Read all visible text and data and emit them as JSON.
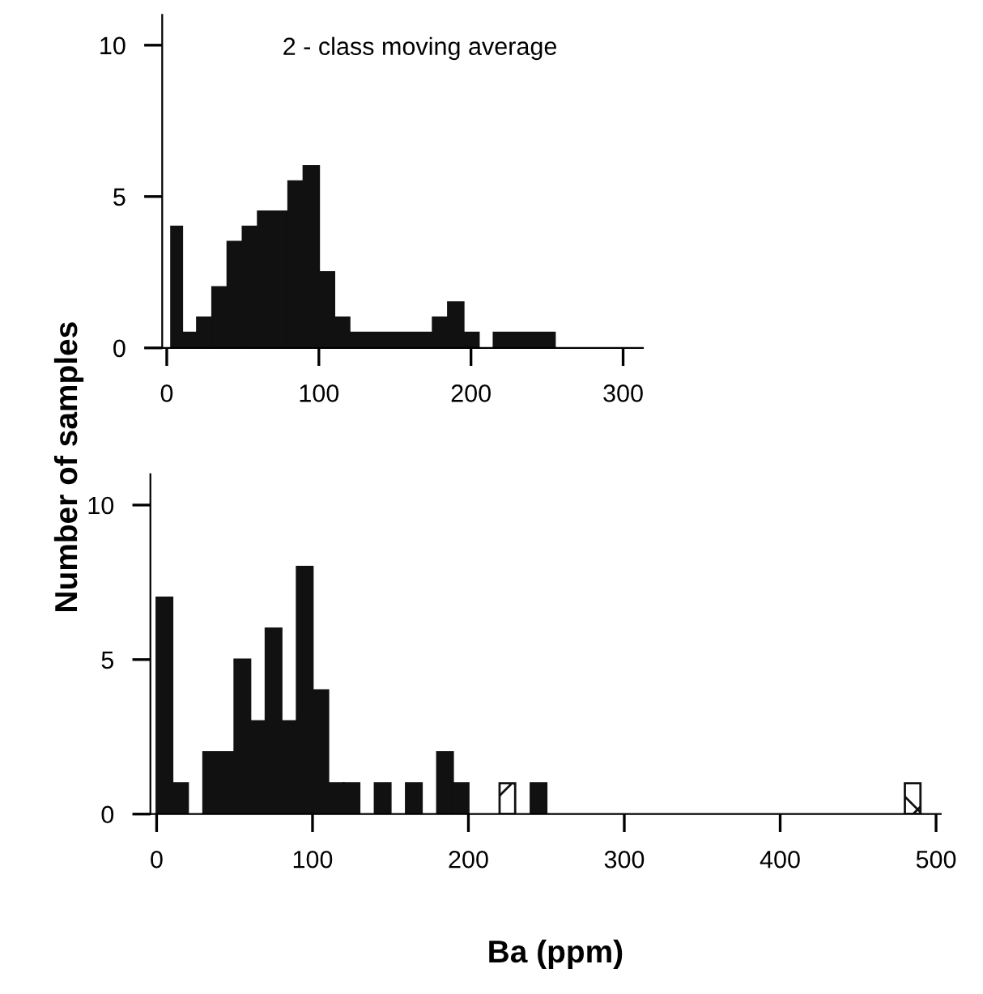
{
  "chart_data": [
    {
      "type": "histogram",
      "annotations": [
        "2 - class moving average"
      ],
      "ylabel": "Number of samples",
      "bins": [
        3,
        10,
        20,
        30,
        40,
        50,
        60,
        80,
        90,
        100,
        110,
        120,
        175,
        185,
        195,
        205,
        215,
        255
      ],
      "values": [
        4,
        0.5,
        1,
        2,
        3.5,
        4,
        4.5,
        5.5,
        6,
        2.5,
        1,
        0.5,
        1,
        1.5,
        0.5,
        0,
        0.5
      ],
      "color": "#111111",
      "xlim": [
        -3,
        313
      ],
      "ylim": [
        0,
        11
      ],
      "xticks": [
        0,
        100,
        200,
        300
      ],
      "yticks": [
        0,
        5,
        10
      ],
      "grid": false
    },
    {
      "type": "histogram",
      "xlabel": "Ba (ppm)",
      "bins": [
        0,
        10,
        20,
        30,
        40,
        50,
        60,
        70,
        80,
        90,
        100,
        110,
        120,
        130,
        140,
        150,
        160,
        170,
        180,
        190,
        200,
        210,
        220,
        230,
        240,
        250,
        260,
        270,
        280,
        290,
        300,
        310,
        320,
        330,
        340,
        350,
        360,
        370,
        380,
        390,
        400,
        410,
        420,
        430,
        440,
        450,
        460,
        470,
        480,
        490
      ],
      "series": [
        {
          "color": "#111111",
          "values": [
            7,
            1,
            0,
            2,
            2,
            5,
            3,
            6,
            3,
            8,
            4,
            1,
            1,
            0,
            1,
            0,
            1,
            0,
            2,
            1,
            0,
            0,
            0,
            0,
            1,
            0,
            0,
            0,
            0,
            0,
            0,
            0,
            0,
            0,
            0,
            0,
            0,
            0,
            0,
            0,
            0,
            0,
            0,
            0,
            0,
            0,
            0,
            0,
            0
          ]
        },
        {
          "color": "#ffffff",
          "values": [
            null,
            null,
            null,
            null,
            null,
            null,
            null,
            null,
            null,
            null,
            null,
            null,
            null,
            null,
            null,
            null,
            null,
            null,
            null,
            null,
            null,
            null,
            1,
            null,
            null,
            null,
            null,
            null,
            null,
            null,
            null,
            null,
            null,
            null,
            null,
            null,
            null,
            null,
            null,
            null,
            null,
            null,
            null,
            null,
            null,
            null,
            null,
            null,
            1
          ]
        }
      ],
      "xlim": [
        -4,
        503
      ],
      "ylim": [
        0,
        11
      ],
      "xticks": [
        0,
        100,
        200,
        300,
        400,
        500
      ],
      "yticks": [
        0,
        5,
        10
      ],
      "grid": false
    }
  ]
}
